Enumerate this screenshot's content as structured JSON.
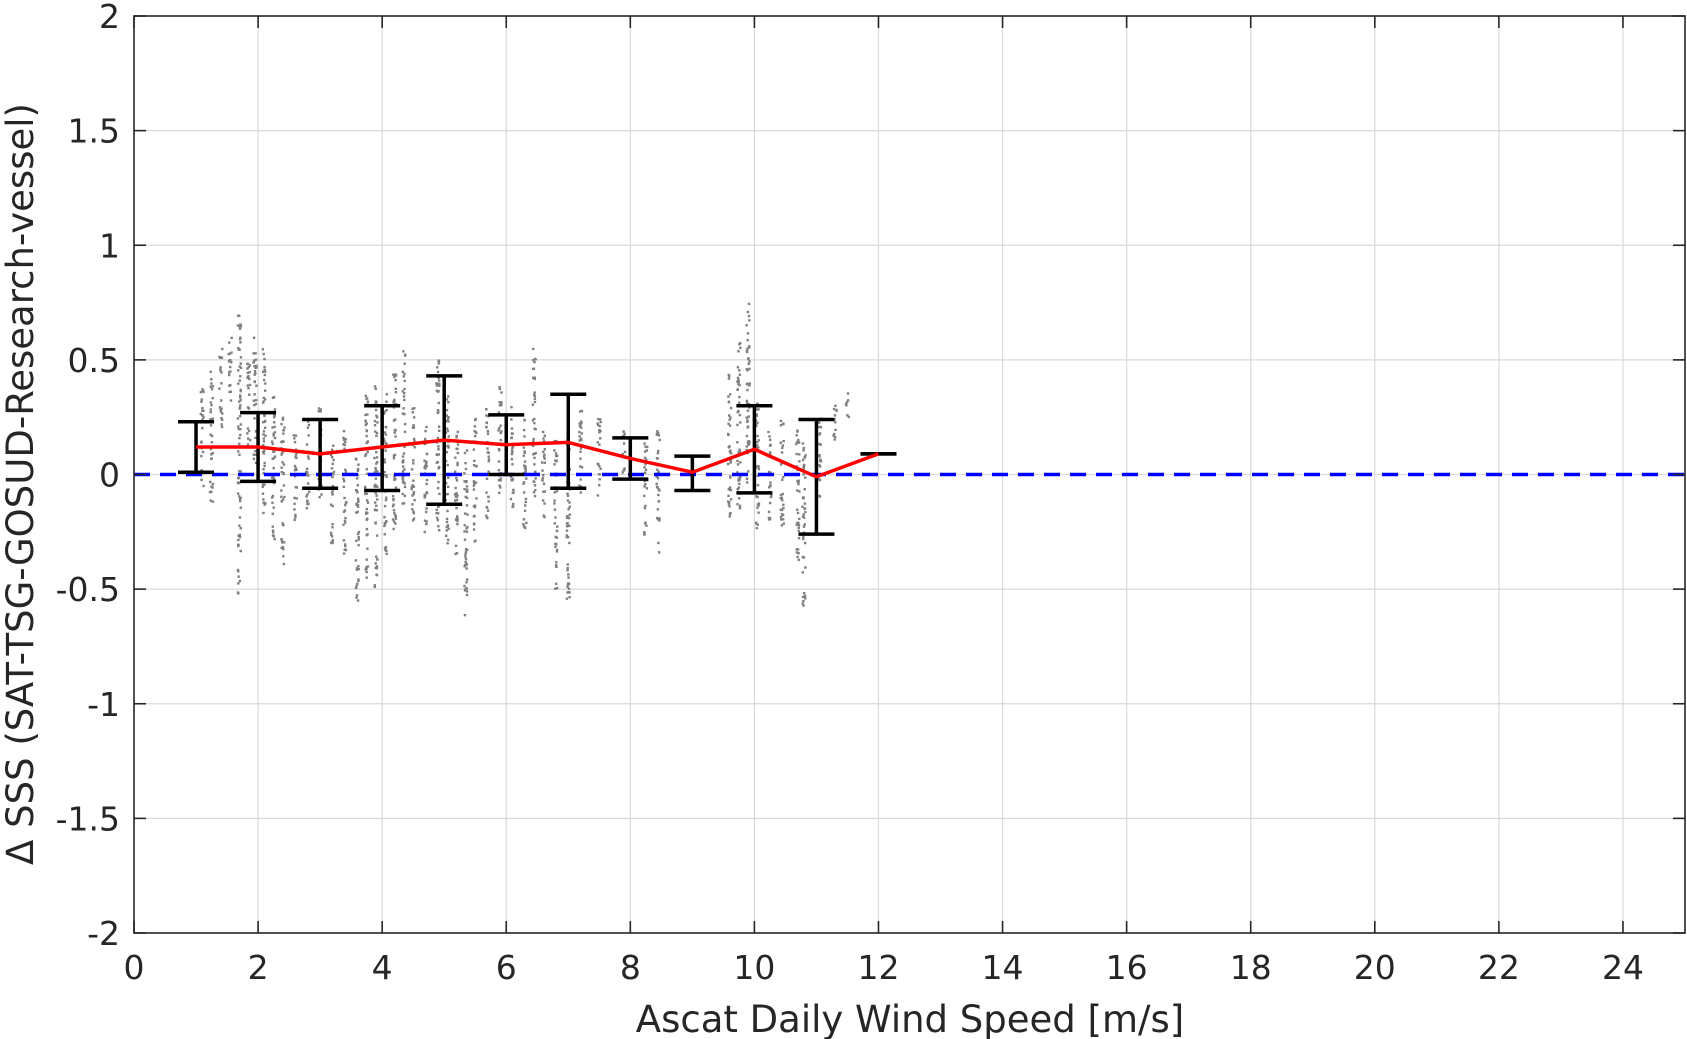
{
  "chart_data": {
    "type": "scatter",
    "title": "",
    "xlabel": "Ascat Daily Wind Speed [m/s]",
    "ylabel": "Δ SSS (SAT-TSG-GOSUD-Research-vessel)",
    "xlim": [
      0,
      25
    ],
    "ylim": [
      -2,
      2
    ],
    "xticks": [
      0,
      2,
      4,
      6,
      8,
      10,
      12,
      14,
      16,
      18,
      20,
      22,
      24
    ],
    "yticks": [
      -2,
      -1.5,
      -1,
      -0.5,
      0,
      0.5,
      1,
      1.5,
      2
    ],
    "xtick_labels": [
      "0",
      "2",
      "4",
      "6",
      "8",
      "10",
      "12",
      "14",
      "16",
      "18",
      "20",
      "22",
      "24"
    ],
    "ytick_labels": [
      "-2",
      "-1.5",
      "-1",
      "-0.5",
      "0",
      "0.5",
      "1",
      "1.5",
      "2"
    ],
    "grid": true,
    "reference_line": {
      "y": 0,
      "style": "dashed",
      "color": "#0000ff"
    },
    "series": [
      {
        "kind": "mean_with_error_bars",
        "color": "#ff0000",
        "errorbar_color": "#000000",
        "x": [
          1,
          2,
          3,
          4,
          5,
          6,
          7,
          8,
          9,
          10,
          11,
          12
        ],
        "y": [
          0.12,
          0.12,
          0.09,
          0.12,
          0.15,
          0.13,
          0.14,
          0.07,
          0.01,
          0.11,
          -0.01,
          0.09
        ],
        "upper": [
          0.23,
          0.27,
          0.24,
          0.3,
          0.43,
          0.26,
          0.35,
          0.16,
          0.08,
          0.3,
          0.24,
          0.09
        ],
        "lower": [
          0.01,
          -0.03,
          -0.06,
          -0.07,
          -0.13,
          0.0,
          -0.06,
          -0.02,
          -0.07,
          -0.08,
          -0.26,
          0.09
        ]
      },
      {
        "kind": "scatter_clusters",
        "color": "#808080",
        "description_free": true,
        "clusters": [
          {
            "x": 1.1,
            "ymin": -0.05,
            "ymax": 0.4
          },
          {
            "x": 1.25,
            "ymin": -0.12,
            "ymax": 0.45
          },
          {
            "x": 1.4,
            "ymin": 0.2,
            "ymax": 0.55
          },
          {
            "x": 1.55,
            "ymin": 0.3,
            "ymax": 0.6
          },
          {
            "x": 1.7,
            "ymin": -0.52,
            "ymax": 0.7
          },
          {
            "x": 1.85,
            "ymin": 0.1,
            "ymax": 0.5
          },
          {
            "x": 1.95,
            "ymin": 0.05,
            "ymax": 0.6
          },
          {
            "x": 2.1,
            "ymin": -0.2,
            "ymax": 0.55
          },
          {
            "x": 2.25,
            "ymin": -0.3,
            "ymax": 0.35
          },
          {
            "x": 2.4,
            "ymin": -0.4,
            "ymax": 0.25
          },
          {
            "x": 2.6,
            "ymin": -0.2,
            "ymax": 0.2
          },
          {
            "x": 2.8,
            "ymin": -0.15,
            "ymax": 0.25
          },
          {
            "x": 3.0,
            "ymin": -0.1,
            "ymax": 0.3
          },
          {
            "x": 3.2,
            "ymin": -0.3,
            "ymax": 0.15
          },
          {
            "x": 3.4,
            "ymin": -0.35,
            "ymax": 0.2
          },
          {
            "x": 3.6,
            "ymin": -0.55,
            "ymax": 0.1
          },
          {
            "x": 3.75,
            "ymin": -0.45,
            "ymax": 0.35
          },
          {
            "x": 3.9,
            "ymin": -0.5,
            "ymax": 0.4
          },
          {
            "x": 4.05,
            "ymin": -0.35,
            "ymax": 0.35
          },
          {
            "x": 4.2,
            "ymin": -0.25,
            "ymax": 0.45
          },
          {
            "x": 4.35,
            "ymin": -0.15,
            "ymax": 0.55
          },
          {
            "x": 4.5,
            "ymin": -0.2,
            "ymax": 0.3
          },
          {
            "x": 4.7,
            "ymin": -0.3,
            "ymax": 0.25
          },
          {
            "x": 4.9,
            "ymin": -0.25,
            "ymax": 0.5
          },
          {
            "x": 5.05,
            "ymin": -0.3,
            "ymax": 0.35
          },
          {
            "x": 5.2,
            "ymin": -0.35,
            "ymax": 0.2
          },
          {
            "x": 5.35,
            "ymin": -0.62,
            "ymax": 0.15
          },
          {
            "x": 5.5,
            "ymin": -0.3,
            "ymax": 0.25
          },
          {
            "x": 5.7,
            "ymin": -0.2,
            "ymax": 0.3
          },
          {
            "x": 5.9,
            "ymin": -0.1,
            "ymax": 0.4
          },
          {
            "x": 6.1,
            "ymin": -0.15,
            "ymax": 0.3
          },
          {
            "x": 6.3,
            "ymin": -0.25,
            "ymax": 0.25
          },
          {
            "x": 6.45,
            "ymin": -0.1,
            "ymax": 0.55
          },
          {
            "x": 6.6,
            "ymin": -0.2,
            "ymax": 0.2
          },
          {
            "x": 6.8,
            "ymin": -0.5,
            "ymax": 0.15
          },
          {
            "x": 7.0,
            "ymin": -0.55,
            "ymax": 0.35
          },
          {
            "x": 7.2,
            "ymin": -0.1,
            "ymax": 0.3
          },
          {
            "x": 7.5,
            "ymin": -0.1,
            "ymax": 0.25
          },
          {
            "x": 7.9,
            "ymin": 0.0,
            "ymax": 0.2
          },
          {
            "x": 8.25,
            "ymin": -0.3,
            "ymax": 0.15
          },
          {
            "x": 8.45,
            "ymin": -0.35,
            "ymax": 0.2
          },
          {
            "x": 9.6,
            "ymin": -0.2,
            "ymax": 0.45
          },
          {
            "x": 9.75,
            "ymin": -0.15,
            "ymax": 0.6
          },
          {
            "x": 9.9,
            "ymin": -0.1,
            "ymax": 0.75
          },
          {
            "x": 10.05,
            "ymin": -0.25,
            "ymax": 0.35
          },
          {
            "x": 10.25,
            "ymin": -0.2,
            "ymax": 0.2
          },
          {
            "x": 10.45,
            "ymin": -0.25,
            "ymax": 0.25
          },
          {
            "x": 10.7,
            "ymin": -0.38,
            "ymax": 0.2
          },
          {
            "x": 10.8,
            "ymin": -0.58,
            "ymax": 0.15
          },
          {
            "x": 11.05,
            "ymin": -0.1,
            "ymax": 0.25
          },
          {
            "x": 11.3,
            "ymin": 0.1,
            "ymax": 0.3
          },
          {
            "x": 11.5,
            "ymin": 0.25,
            "ymax": 0.37
          }
        ]
      }
    ]
  }
}
